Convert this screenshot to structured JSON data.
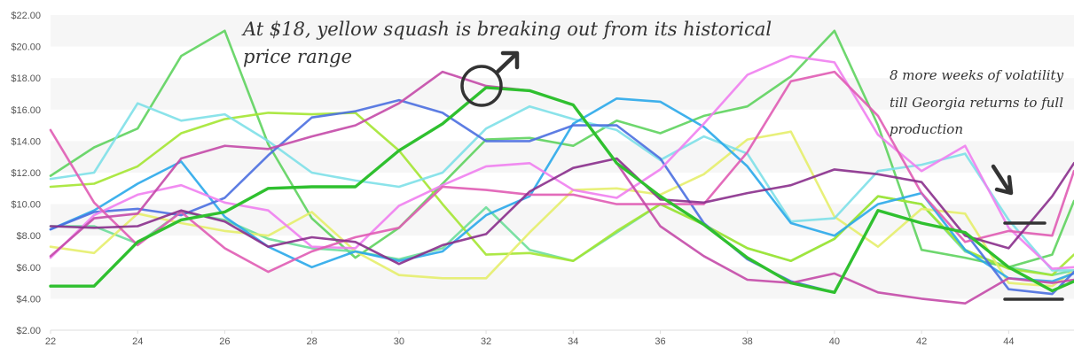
{
  "chart_data": {
    "type": "line",
    "title": "",
    "xlabel": "",
    "ylabel": "",
    "xlim": [
      22,
      45.5
    ],
    "ylim": [
      2,
      22
    ],
    "x_ticks": [
      22,
      24,
      26,
      28,
      30,
      32,
      34,
      36,
      38,
      40,
      42,
      44
    ],
    "y_ticks": [
      2,
      4,
      6,
      8,
      10,
      12,
      14,
      16,
      18,
      20,
      22
    ],
    "y_tick_labels": [
      "$2.00",
      "$4.00",
      "$6.00",
      "$8.00",
      "$10.00",
      "$12.00",
      "$14.00",
      "$16.00",
      "$18.00",
      "$20.00",
      "$22.00"
    ],
    "grid": "horizontal banded",
    "legend": "none",
    "x": [
      22,
      23,
      24,
      25,
      26,
      27,
      28,
      29,
      30,
      31,
      32,
      33,
      34,
      35,
      36,
      37,
      38,
      39,
      40,
      41,
      42,
      43,
      44,
      45,
      45.5
    ],
    "highlight_series_index": 0,
    "series": [
      {
        "color": "#2fc02f",
        "values": [
          4.8,
          4.8,
          7.6,
          9.0,
          9.5,
          11.0,
          11.1,
          11.1,
          13.4,
          15.1,
          17.4,
          17.2,
          16.3,
          12.6,
          10.5,
          8.7,
          6.6,
          5.0,
          4.4,
          9.6,
          8.8,
          8.2,
          6.0,
          4.5,
          5.1
        ]
      },
      {
        "color": "#5ed35e",
        "values": [
          11.8,
          13.6,
          14.8,
          19.4,
          21.0,
          13.8,
          9.1,
          6.6,
          8.5,
          11.3,
          14.1,
          14.2,
          13.7,
          15.3,
          14.5,
          15.6,
          16.2,
          18.1,
          21.0,
          15.0,
          7.1,
          6.6,
          6.0,
          6.8,
          10.2
        ]
      },
      {
        "color": "#6dde9a",
        "values": [
          8.6,
          8.6,
          7.5,
          9.5,
          9.0,
          7.8,
          7.2,
          7.0,
          6.5,
          7.2,
          9.8,
          7.1,
          6.4,
          8.2,
          10.0,
          8.7,
          7.2,
          6.4,
          7.8,
          10.5,
          10.0,
          7.0,
          6.0,
          5.5,
          5.8
        ]
      },
      {
        "color": "#a4e632",
        "values": [
          11.1,
          11.3,
          12.4,
          14.5,
          15.4,
          15.8,
          15.7,
          15.8,
          13.4,
          10.0,
          6.8,
          6.9,
          6.4,
          8.3,
          10.0,
          8.7,
          7.2,
          6.4,
          7.8,
          10.5,
          10.0,
          7.1,
          5.9,
          5.5,
          6.8
        ]
      },
      {
        "color": "#e5ee6c",
        "values": [
          7.3,
          6.9,
          9.4,
          8.8,
          8.3,
          8.0,
          9.5,
          7.0,
          5.5,
          5.3,
          5.3,
          8.2,
          10.9,
          11.0,
          10.6,
          11.9,
          14.1,
          14.6,
          9.2,
          7.3,
          9.7,
          9.4,
          5.0,
          4.8,
          5.8
        ]
      },
      {
        "color": "#7ee0e8",
        "values": [
          11.6,
          12.0,
          16.4,
          15.3,
          15.7,
          14.0,
          12.0,
          11.5,
          11.1,
          12.0,
          14.8,
          16.2,
          15.4,
          14.7,
          12.8,
          14.3,
          13.2,
          8.9,
          9.1,
          12.1,
          12.5,
          13.2,
          9.0,
          5.8,
          5.8
        ]
      },
      {
        "color": "#2aa8ea",
        "values": [
          8.4,
          9.6,
          11.3,
          12.7,
          9.2,
          7.3,
          6.0,
          7.0,
          6.4,
          7.0,
          9.3,
          10.5,
          15.1,
          16.7,
          16.5,
          14.9,
          12.4,
          8.8,
          8.0,
          10.0,
          10.7,
          7.1,
          5.3,
          5.1,
          5.6
        ]
      },
      {
        "color": "#4b6fe0",
        "values": [
          8.4,
          9.5,
          9.7,
          9.3,
          10.4,
          13.1,
          15.5,
          15.9,
          16.6,
          15.8,
          14.0,
          14.0,
          15.0,
          15.0,
          12.9,
          8.8,
          6.5,
          5.1,
          4.4,
          9.6,
          8.8,
          8.2,
          4.6,
          4.3,
          5.7
        ]
      },
      {
        "color": "#f080f0",
        "values": [
          6.6,
          9.3,
          10.6,
          11.2,
          10.1,
          9.6,
          7.3,
          7.2,
          9.9,
          11.2,
          12.4,
          12.6,
          10.9,
          10.4,
          12.2,
          15.1,
          18.2,
          19.4,
          19.0,
          14.4,
          12.1,
          13.7,
          8.5,
          5.9,
          6.0
        ]
      },
      {
        "color": "#e05cb4",
        "values": [
          14.7,
          10.1,
          7.4,
          9.5,
          7.2,
          5.7,
          7.0,
          7.9,
          8.5,
          11.1,
          10.9,
          10.6,
          10.6,
          10.0,
          10.0,
          10.0,
          13.3,
          17.8,
          18.4,
          15.6,
          10.7,
          7.6,
          8.3,
          8.0,
          12.1
        ]
      },
      {
        "color": "#c44aa8",
        "values": [
          6.7,
          9.1,
          9.4,
          12.9,
          13.7,
          13.5,
          14.3,
          15.0,
          16.4,
          18.4,
          17.5,
          17.2,
          16.3,
          12.6,
          8.6,
          6.7,
          5.2,
          5.0,
          5.6,
          4.4,
          4.0,
          3.7,
          5.3,
          5.0,
          5.2
        ]
      },
      {
        "color": "#8a2f8c",
        "values": [
          8.6,
          8.5,
          8.6,
          9.6,
          8.9,
          7.3,
          7.9,
          7.6,
          6.2,
          7.4,
          8.1,
          10.8,
          12.3,
          12.9,
          10.3,
          10.1,
          10.7,
          11.2,
          12.2,
          11.9,
          11.4,
          8.0,
          7.2,
          10.5,
          12.6
        ]
      }
    ],
    "annotations": [
      {
        "id": "squash_note",
        "text_lines": [
          "At $18, yellow squash is breaking out from its historical",
          "price range"
        ]
      },
      {
        "id": "georgia_note",
        "text_lines": [
          "8 more weeks of volatility",
          "till Georgia returns to full",
          "production"
        ]
      }
    ],
    "colors": {
      "band": "#f6f6f6",
      "axis_text": "#555555",
      "ink": "#333333",
      "axis_line": "#dddddd"
    }
  }
}
